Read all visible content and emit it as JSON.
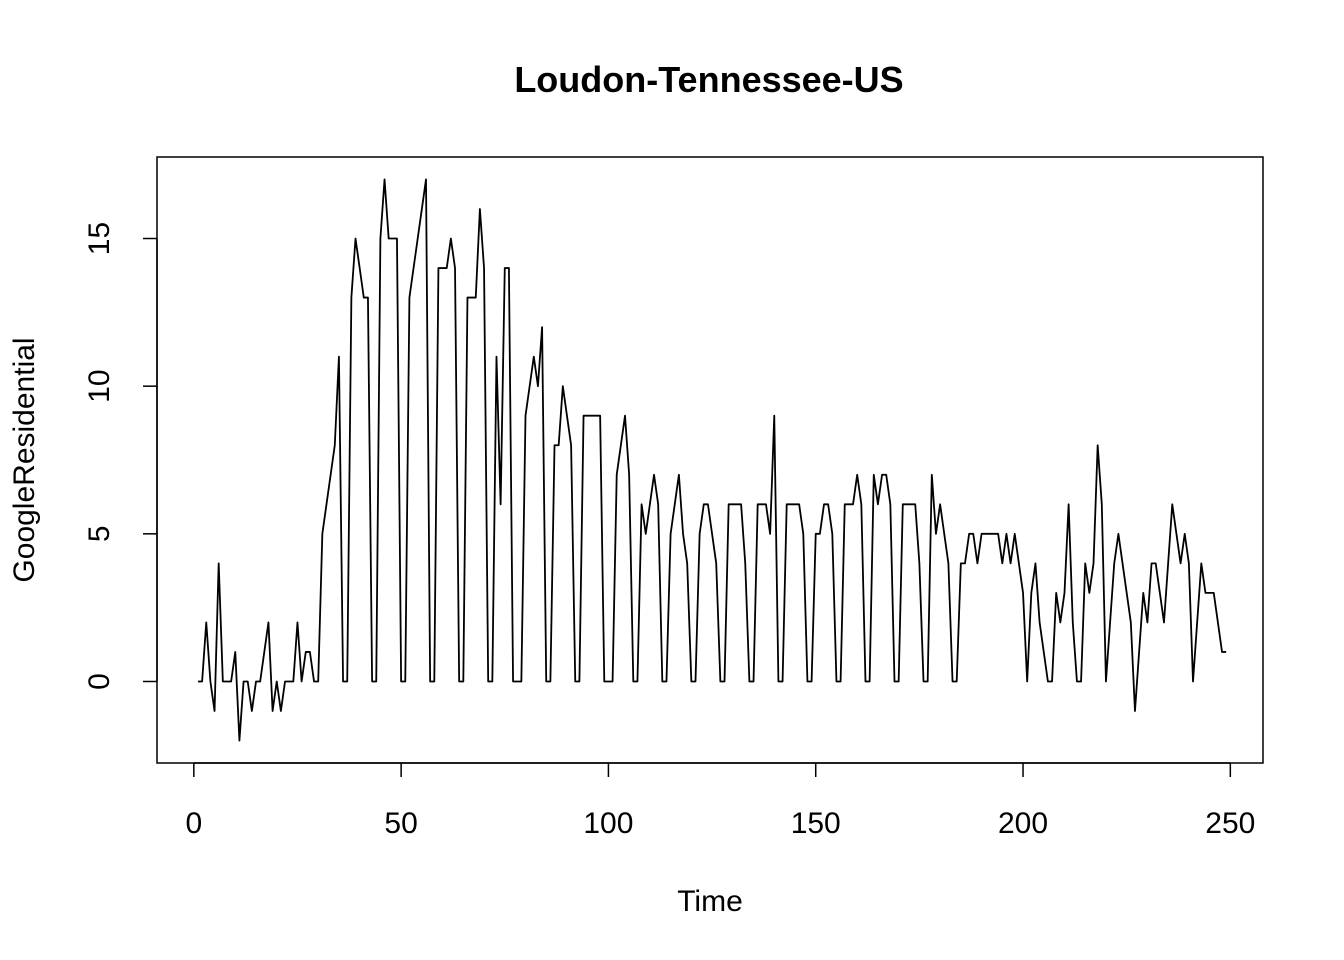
{
  "chart_data": {
    "type": "line",
    "title": "Loudon-Tennessee-US",
    "xlabel": "Time",
    "ylabel": "GoogleResidential",
    "xlim": [
      -8.88,
      257.88
    ],
    "ylim": [
      -2.76,
      17.76
    ],
    "x_ticks": [
      0,
      50,
      100,
      150,
      200,
      250
    ],
    "y_ticks": [
      0,
      5,
      10,
      15
    ],
    "grid": false,
    "legend": "none",
    "line_color": "#000000",
    "series": [
      {
        "x_start": 1,
        "values": [
          0,
          0,
          2,
          0,
          -1,
          4,
          0,
          0,
          0,
          1,
          -2,
          0,
          0,
          -1,
          0,
          0,
          1,
          2,
          -1,
          0,
          -1,
          0,
          0,
          0,
          2,
          0,
          1,
          1,
          0,
          0,
          5,
          6,
          7,
          8,
          11,
          0,
          0,
          13,
          15,
          14,
          13,
          13,
          0,
          0,
          15,
          17,
          15,
          15,
          15,
          0,
          0,
          13,
          14,
          15,
          16,
          17,
          0,
          0,
          14,
          14,
          14,
          15,
          14,
          0,
          0,
          13,
          13,
          13,
          16,
          14,
          0,
          0,
          11,
          6,
          14,
          14,
          0,
          0,
          0,
          9,
          10,
          11,
          10,
          12,
          0,
          0,
          8,
          8,
          10,
          9,
          8,
          0,
          0,
          9,
          9,
          9,
          9,
          9,
          0,
          0,
          0,
          7,
          8,
          9,
          7,
          0,
          0,
          6,
          5,
          6,
          7,
          6,
          0,
          0,
          5,
          6,
          7,
          5,
          4,
          0,
          0,
          5,
          6,
          6,
          5,
          4,
          0,
          0,
          6,
          6,
          6,
          6,
          4,
          0,
          0,
          6,
          6,
          6,
          5,
          9,
          0,
          0,
          6,
          6,
          6,
          6,
          5,
          0,
          0,
          5,
          5,
          6,
          6,
          5,
          0,
          0,
          6,
          6,
          6,
          7,
          6,
          0,
          0,
          7,
          6,
          7,
          7,
          6,
          0,
          0,
          6,
          6,
          6,
          6,
          4,
          0,
          0,
          7,
          5,
          6,
          5,
          4,
          0,
          0,
          4,
          4,
          5,
          5,
          4,
          5,
          5,
          5,
          5,
          5,
          4,
          5,
          4,
          5,
          4,
          3,
          0,
          3,
          4,
          2,
          1,
          0,
          0,
          3,
          2,
          3,
          6,
          2,
          0,
          0,
          4,
          3,
          4,
          8,
          6,
          0,
          2,
          4,
          5,
          4,
          3,
          2,
          -1,
          1,
          3,
          2,
          4,
          4,
          3,
          2,
          4,
          6,
          5,
          4,
          5,
          4,
          0,
          2,
          4,
          3,
          3,
          3,
          2,
          1,
          1
        ]
      }
    ]
  }
}
